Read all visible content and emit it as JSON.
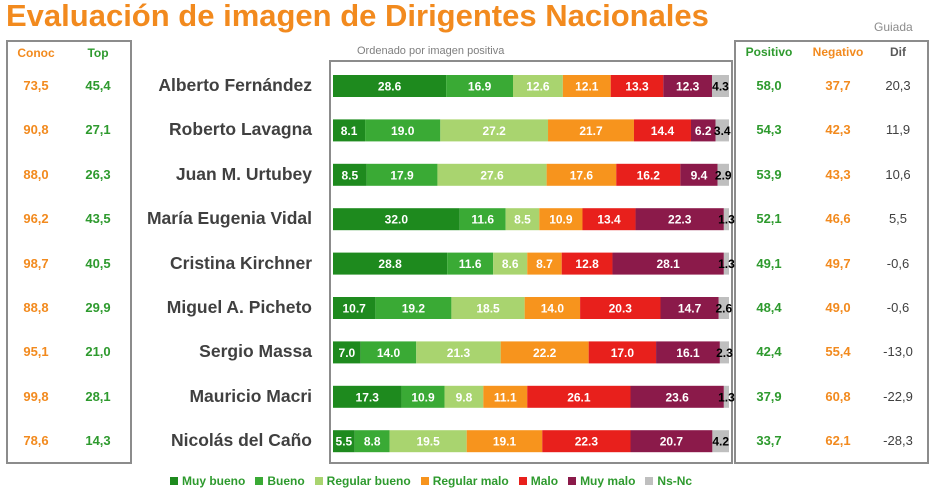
{
  "header": {
    "title": "Evaluación de imagen de Dirigentes Nacionales",
    "subtitle": "Guiada",
    "order_note": "Ordenado por imagen positiva"
  },
  "columns": {
    "conoc": "Conoc",
    "top": "Top",
    "positivo": "Positivo",
    "negativo": "Negativo",
    "dif": "Dif"
  },
  "rows": [
    {
      "name": "Alberto Fernández",
      "conoc": "73,5",
      "top": "45,4",
      "positivo": "58,0",
      "negativo": "37,7",
      "dif": "20,3"
    },
    {
      "name": "Roberto  Lavagna",
      "conoc": "90,8",
      "top": "27,1",
      "positivo": "54,3",
      "negativo": "42,3",
      "dif": "11,9"
    },
    {
      "name": "Juan M. Urtubey",
      "conoc": "88,0",
      "top": "26,3",
      "positivo": "53,9",
      "negativo": "43,3",
      "dif": "10,6"
    },
    {
      "name": "María Eugenia Vidal",
      "conoc": "96,2",
      "top": "43,5",
      "positivo": "52,1",
      "negativo": "46,6",
      "dif": "5,5"
    },
    {
      "name": "Cristina Kirchner",
      "conoc": "98,7",
      "top": "40,5",
      "positivo": "49,1",
      "negativo": "49,7",
      "dif": "-0,6"
    },
    {
      "name": "Miguel A. Picheto",
      "conoc": "88,8",
      "top": "29,9",
      "positivo": "48,4",
      "negativo": "49,0",
      "dif": "-0,6"
    },
    {
      "name": "Sergio Massa",
      "conoc": "95,1",
      "top": "21,0",
      "positivo": "42,4",
      "negativo": "55,4",
      "dif": "-13,0"
    },
    {
      "name": "Mauricio Macri",
      "conoc": "99,8",
      "top": "28,1",
      "positivo": "37,9",
      "negativo": "60,8",
      "dif": "-22,9"
    },
    {
      "name": "Nicolás del Caño",
      "conoc": "78,6",
      "top": "14,3",
      "positivo": "33,7",
      "negativo": "62,1",
      "dif": "-28,3"
    }
  ],
  "chart_data": {
    "type": "bar",
    "orientation": "horizontal",
    "stacked": "100%",
    "categories": [
      "Alberto Fernández",
      "Roberto  Lavagna",
      "Juan M. Urtubey",
      "María Eugenia Vidal",
      "Cristina Kirchner",
      "Miguel A. Picheto",
      "Sergio Massa",
      "Mauricio Macri",
      "Nicolás del Caño"
    ],
    "series": [
      {
        "name": "Muy bueno",
        "color": "#1e8a1e",
        "values": [
          28.6,
          8.1,
          8.5,
          32.0,
          28.8,
          10.7,
          7.0,
          17.3,
          5.5
        ]
      },
      {
        "name": "Bueno",
        "color": "#3aaa35",
        "values": [
          16.9,
          19.0,
          17.9,
          11.6,
          11.6,
          19.2,
          14.0,
          10.9,
          8.8
        ]
      },
      {
        "name": "Regular bueno",
        "color": "#a9d46f",
        "values": [
          12.6,
          27.2,
          27.6,
          8.5,
          8.6,
          18.5,
          21.3,
          9.8,
          19.5
        ]
      },
      {
        "name": "Regular malo",
        "color": "#f7941d",
        "values": [
          12.1,
          21.7,
          17.6,
          10.9,
          8.7,
          14.0,
          22.2,
          11.1,
          19.1
        ]
      },
      {
        "name": "Malo",
        "color": "#e8201c",
        "values": [
          13.3,
          14.4,
          16.2,
          13.4,
          12.8,
          20.3,
          17.0,
          26.1,
          22.3
        ]
      },
      {
        "name": "Muy malo",
        "color": "#8b1a4a",
        "values": [
          12.3,
          6.2,
          9.4,
          22.3,
          28.1,
          14.7,
          16.1,
          23.6,
          20.7
        ]
      },
      {
        "name": "Ns-Nc",
        "color": "#bfbfbf",
        "values": [
          4.3,
          3.4,
          2.9,
          1.3,
          1.3,
          2.6,
          2.3,
          1.3,
          4.2
        ]
      }
    ],
    "value_labels": [
      [
        "28.6",
        "16.9",
        "12.6",
        "12.1",
        "13.3",
        "12.3",
        "4.3"
      ],
      [
        "8.1",
        "19.0",
        "27.2",
        "21.7",
        "14.4",
        "6.2",
        "3.4"
      ],
      [
        "8.5",
        "17.9",
        "27.6",
        "17.6",
        "16.2",
        "9.4",
        "2.9"
      ],
      [
        "32.0",
        "11.6",
        "8.5",
        "10.9",
        "13.4",
        "22.3",
        "1.3"
      ],
      [
        "28.8",
        "11.6",
        "8.6",
        "8.7",
        "12.8",
        "28.1",
        "1.3"
      ],
      [
        "10.7",
        "19.2",
        "18.5",
        "14.0",
        "20.3",
        "14.7",
        "2.6"
      ],
      [
        "7.0",
        "14.0",
        "21.3",
        "22.2",
        "17.0",
        "16.1",
        "2.3"
      ],
      [
        "17.3",
        "10.9",
        "9.8",
        "11.1",
        "26.1",
        "23.6",
        "1.3"
      ],
      [
        "5.5",
        "8.8",
        "19.5",
        "19.1",
        "22.3",
        "20.7",
        "4.2"
      ]
    ],
    "xlim": [
      0,
      100
    ],
    "legend_position": "bottom"
  }
}
